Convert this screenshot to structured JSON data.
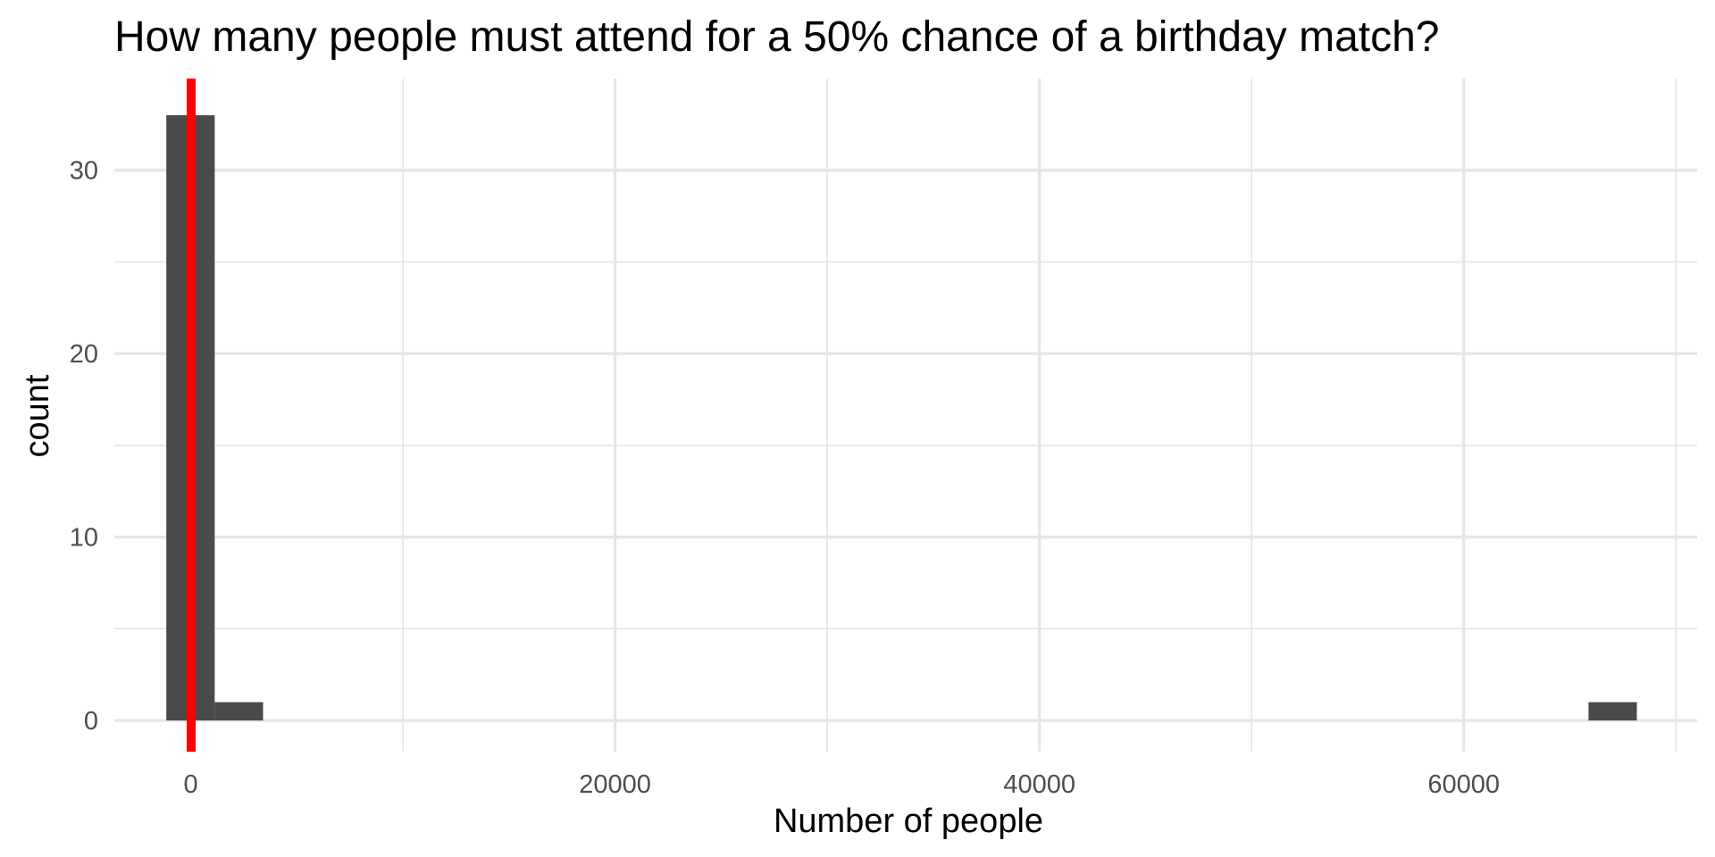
{
  "chart_data": {
    "type": "bar",
    "title": "How many people must attend for a 50% chance of a birthday match?",
    "xlabel": "Number of people",
    "ylabel": "count",
    "xlim": [
      -3600,
      71000
    ],
    "ylim": [
      -1.7,
      35
    ],
    "x_major_ticks": [
      0,
      20000,
      40000,
      60000
    ],
    "x_tick_labels": [
      "0",
      "20000",
      "40000",
      "60000"
    ],
    "x_minor_ticks": [
      10000,
      30000,
      50000,
      70000
    ],
    "y_major_ticks": [
      0,
      10,
      20,
      30
    ],
    "y_tick_labels": [
      "0",
      "10",
      "20",
      "30"
    ],
    "y_minor_ticks": [
      5,
      15,
      25
    ],
    "grid": true,
    "bins": [
      {
        "x0": -1150,
        "x1": 1130,
        "count": 33
      },
      {
        "x0": 1130,
        "x1": 3410,
        "count": 1
      },
      {
        "x0": 65880,
        "x1": 68160,
        "count": 1
      }
    ],
    "reference_line": {
      "x": 23,
      "color": "#ff0000"
    },
    "bar_color": "#4a4a4a",
    "grid_color": "#e5e5e5"
  }
}
